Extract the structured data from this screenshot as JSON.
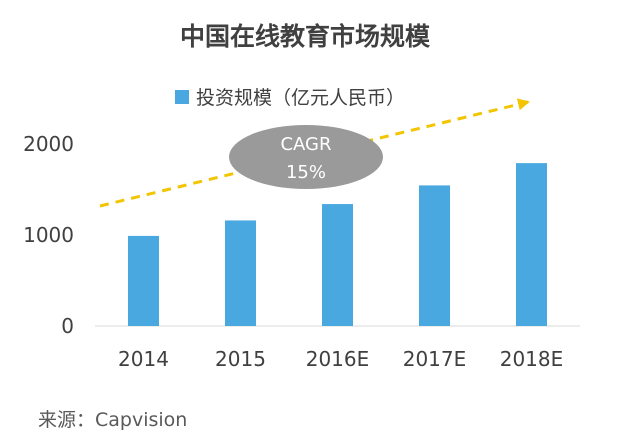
{
  "colors": {
    "bar": "#4aa8e0",
    "arrow": "#f2c500",
    "ellipse": "#9a9a9a",
    "text": "#404040",
    "axis": "#d9d9d9"
  },
  "source_note": "来源：Capvision",
  "chart_data": {
    "type": "bar",
    "title": "中国在线教育市场规模",
    "series": [
      {
        "name": "投资规模（亿元人民币）",
        "values": [
          990,
          1160,
          1340,
          1545,
          1790
        ]
      }
    ],
    "categories": [
      "2014",
      "2015",
      "2016E",
      "2017E",
      "2018E"
    ],
    "ylim": [
      0,
      2000
    ],
    "yticks": [
      "0",
      "1000",
      "2000"
    ],
    "legend_position": "top",
    "grid": false,
    "annotation": {
      "line1": "CAGR",
      "line2": "15%"
    }
  }
}
